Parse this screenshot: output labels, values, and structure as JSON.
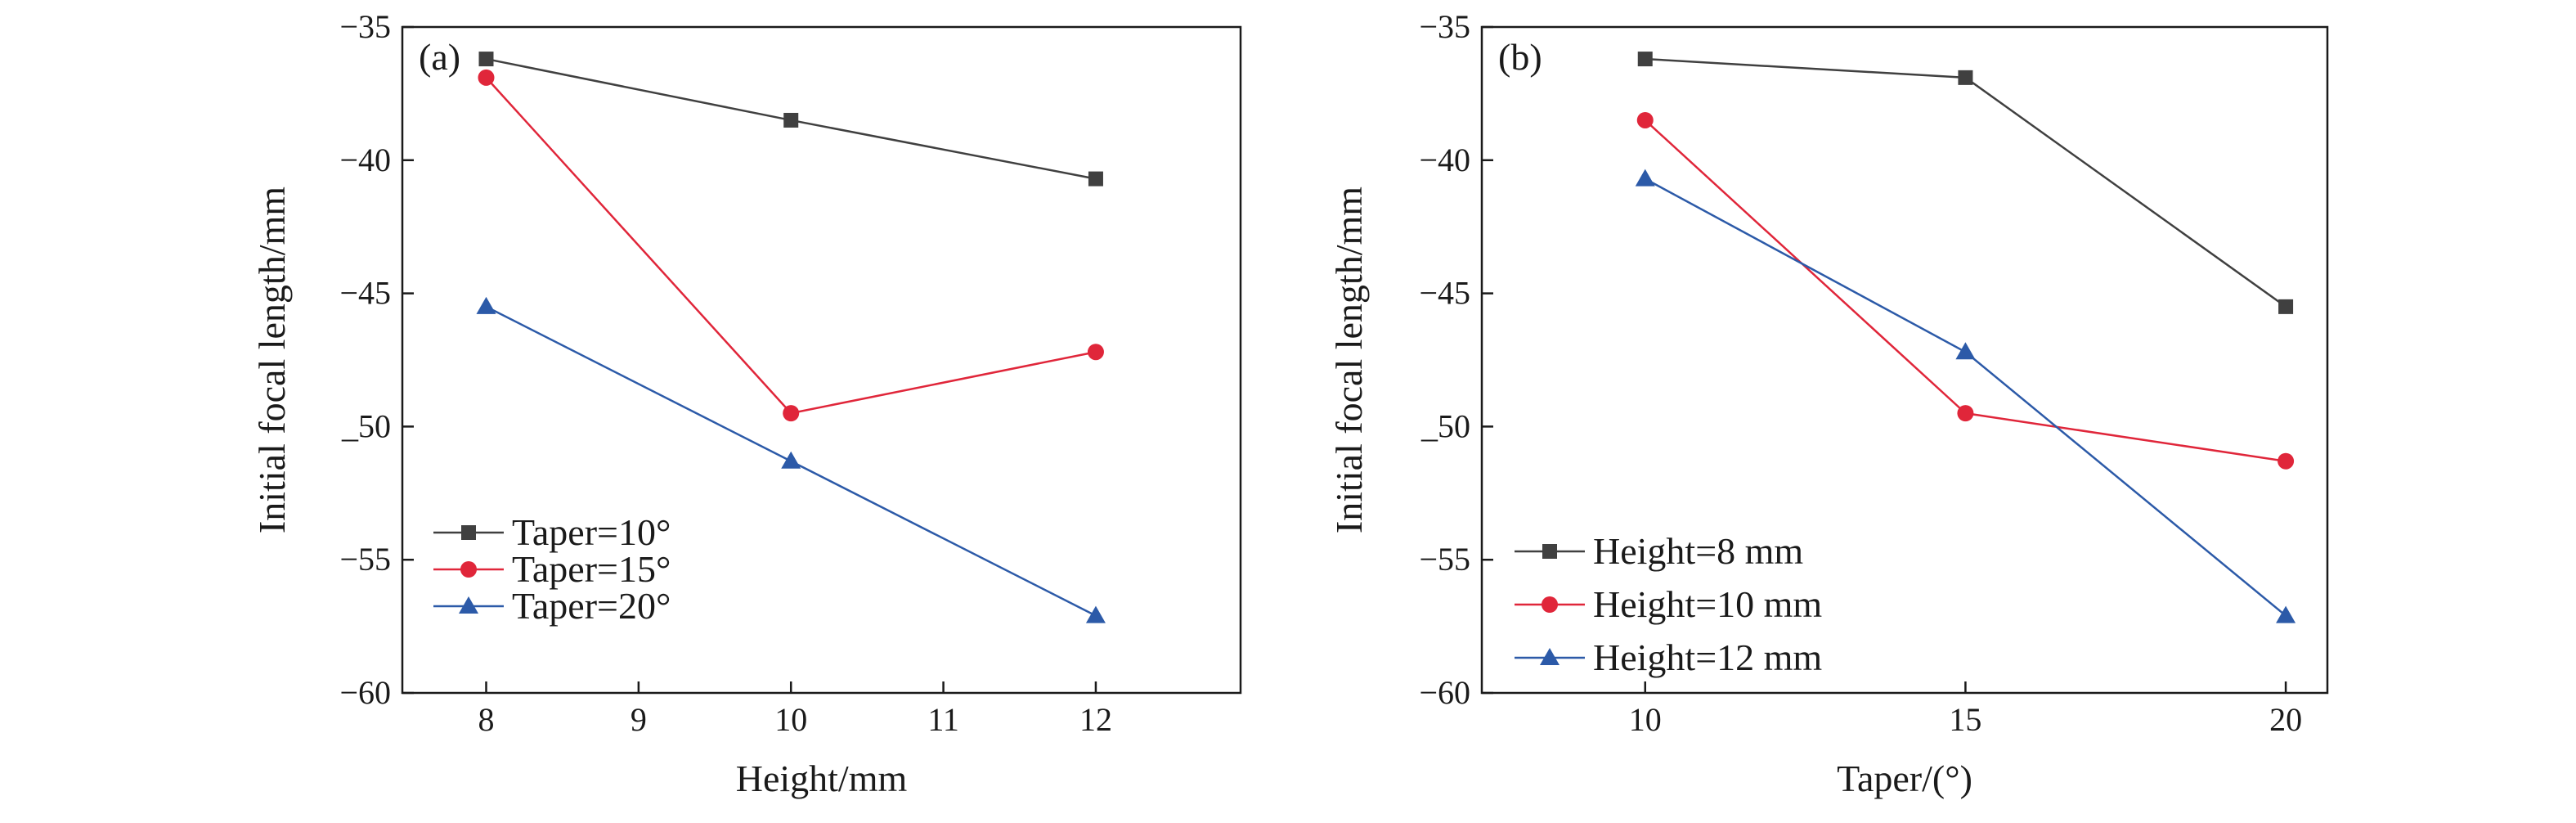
{
  "chart_data": [
    {
      "type": "line",
      "panel_label": "(a)",
      "xlabel": "Height/mm",
      "ylabel": "Initial focal length/mm",
      "xlim": [
        7.45,
        12.95
      ],
      "ylim": [
        -60,
        -35
      ],
      "xticks": [
        8,
        9,
        10,
        11,
        12
      ],
      "xtick_labels": [
        "8",
        "9",
        "10",
        "11",
        "12"
      ],
      "yticks": [
        -35,
        -40,
        -45,
        -50,
        -55,
        -60
      ],
      "ytick_labels": [
        "−35",
        "−40",
        "−45",
        "_50",
        "−55",
        "−60"
      ],
      "grid": false,
      "legend_position": "bottom-left",
      "x": [
        8,
        10,
        12
      ],
      "series": [
        {
          "name": "Taper=10°",
          "values": [
            -36.2,
            -38.5,
            -40.7
          ],
          "color": "#404040",
          "marker": "square"
        },
        {
          "name": "Taper=15°",
          "values": [
            -36.9,
            -49.5,
            -47.2
          ],
          "color": "#e0263a",
          "marker": "circle"
        },
        {
          "name": "Taper=20°",
          "values": [
            -45.5,
            -51.3,
            -57.1
          ],
          "color": "#2c5aa8",
          "marker": "triangle"
        }
      ]
    },
    {
      "type": "line",
      "panel_label": "(b)",
      "xlabel": "Taper/(°)",
      "ylabel": "Initial focal length/mm",
      "xlim": [
        7.45,
        20.65
      ],
      "ylim": [
        -60,
        -35
      ],
      "xticks": [
        10,
        15,
        20
      ],
      "xtick_labels": [
        "10",
        "15",
        "20"
      ],
      "yticks": [
        -35,
        -40,
        -45,
        -50,
        -55,
        -60
      ],
      "ytick_labels": [
        "−35",
        "−40",
        "−45",
        "_50",
        "−55",
        "−60"
      ],
      "grid": false,
      "legend_position": "bottom-left",
      "x": [
        10,
        15,
        20
      ],
      "series": [
        {
          "name": "Height=8 mm",
          "values": [
            -36.2,
            -36.9,
            -45.5
          ],
          "color": "#404040",
          "marker": "square"
        },
        {
          "name": "Height=10 mm",
          "values": [
            -38.5,
            -49.5,
            -51.3
          ],
          "color": "#e0263a",
          "marker": "circle"
        },
        {
          "name": "Height=12 mm",
          "values": [
            -40.7,
            -47.2,
            -57.1
          ],
          "color": "#2c5aa8",
          "marker": "triangle"
        }
      ]
    }
  ]
}
